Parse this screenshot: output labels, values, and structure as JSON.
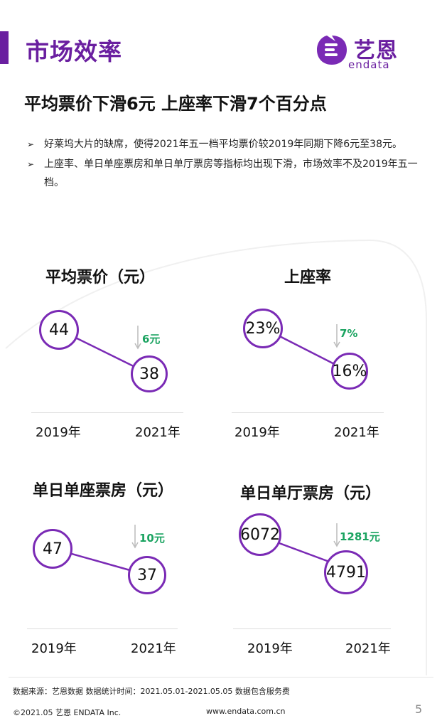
{
  "header": {
    "section_title": "市场效率",
    "logo_cn": "艺恩",
    "logo_en": "endata"
  },
  "headline": "平均票价下滑6元   上座率下滑7个百分点",
  "bullets": [
    "好莱坞大片的缺席，使得2021年五一档平均票价较2019年同期下降6元至38元。",
    "上座率、单日单座票房和单日单厅票房等指标均出现下滑，市场效率不及2019年五一档。"
  ],
  "panels": [
    {
      "title": "平均票价（元）",
      "v2019": "44",
      "v2021": "38",
      "drop": "6元",
      "year1": "2019年",
      "year2": "2021年"
    },
    {
      "title": "上座率",
      "v2019": "23%",
      "v2021": "16%",
      "drop": "7%",
      "year1": "2019年",
      "year2": "2021年"
    },
    {
      "title": "单日单座票房（元）",
      "v2019": "47",
      "v2021": "37",
      "drop": "10元",
      "year1": "2019年",
      "year2": "2021年"
    },
    {
      "title": "单日单厅票房（元）",
      "v2019": "6072",
      "v2021": "4791",
      "drop": "1281元",
      "year1": "2019年",
      "year2": "2021年"
    }
  ],
  "footer": {
    "source": "数据来源：艺恩数据   数据统计时间：2021.05.01-2021.05.05 数据包含服务费",
    "copyright": "©2021.05 艺恩 ENDATA Inc.",
    "website": "www.endata.com.cn",
    "page": "5"
  },
  "colors": {
    "brand": "#6a1fa0",
    "circle": "#7a2ab5",
    "drop": "#1aa360"
  }
}
